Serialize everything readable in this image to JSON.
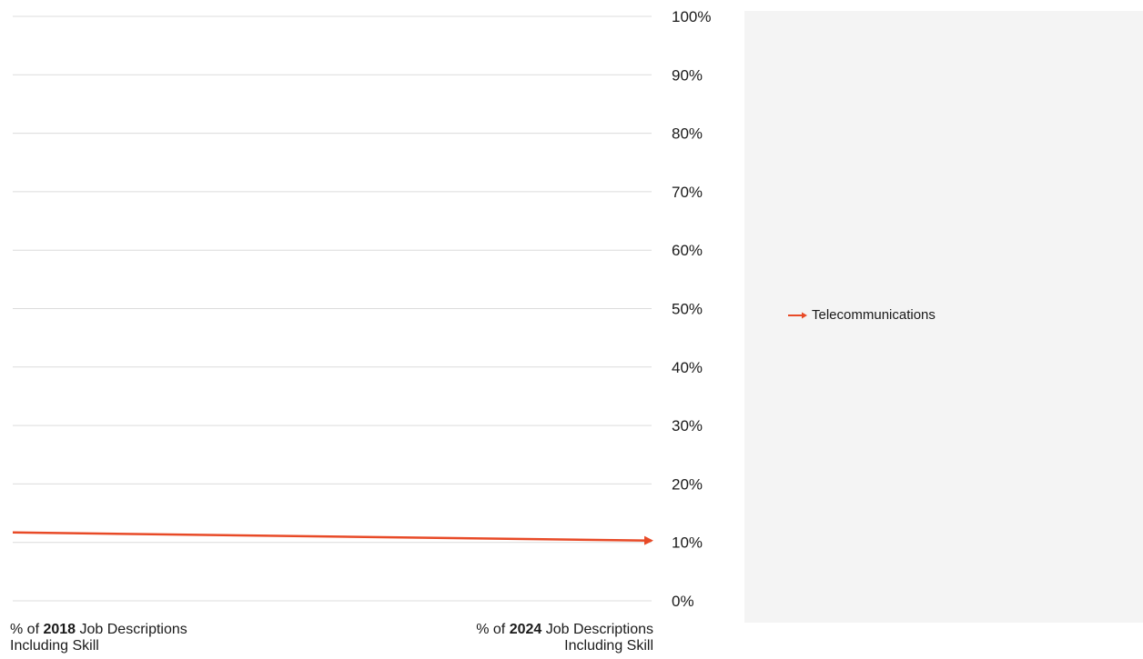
{
  "chart_data": {
    "type": "line",
    "x": [
      "2018",
      "2024"
    ],
    "xlabels": [
      {
        "prefix": "% of ",
        "year": "2018",
        "suffix": " Job Descriptions",
        "line2": "Including Skill"
      },
      {
        "prefix": "% of ",
        "year": "2024",
        "suffix": " Job Descriptions",
        "line2": "Including Skill"
      }
    ],
    "ylim": [
      0,
      100
    ],
    "yticks": [
      0,
      10,
      20,
      30,
      40,
      50,
      60,
      70,
      80,
      90,
      100
    ],
    "ytick_labels": [
      "0%",
      "10%",
      "20%",
      "30%",
      "40%",
      "50%",
      "60%",
      "70%",
      "80%",
      "90%",
      "100%"
    ],
    "series": [
      {
        "name": "Telecommunications",
        "values": [
          11.7,
          10.3
        ],
        "color": "#e84a27"
      }
    ],
    "grid": true,
    "legend_position": "right"
  }
}
